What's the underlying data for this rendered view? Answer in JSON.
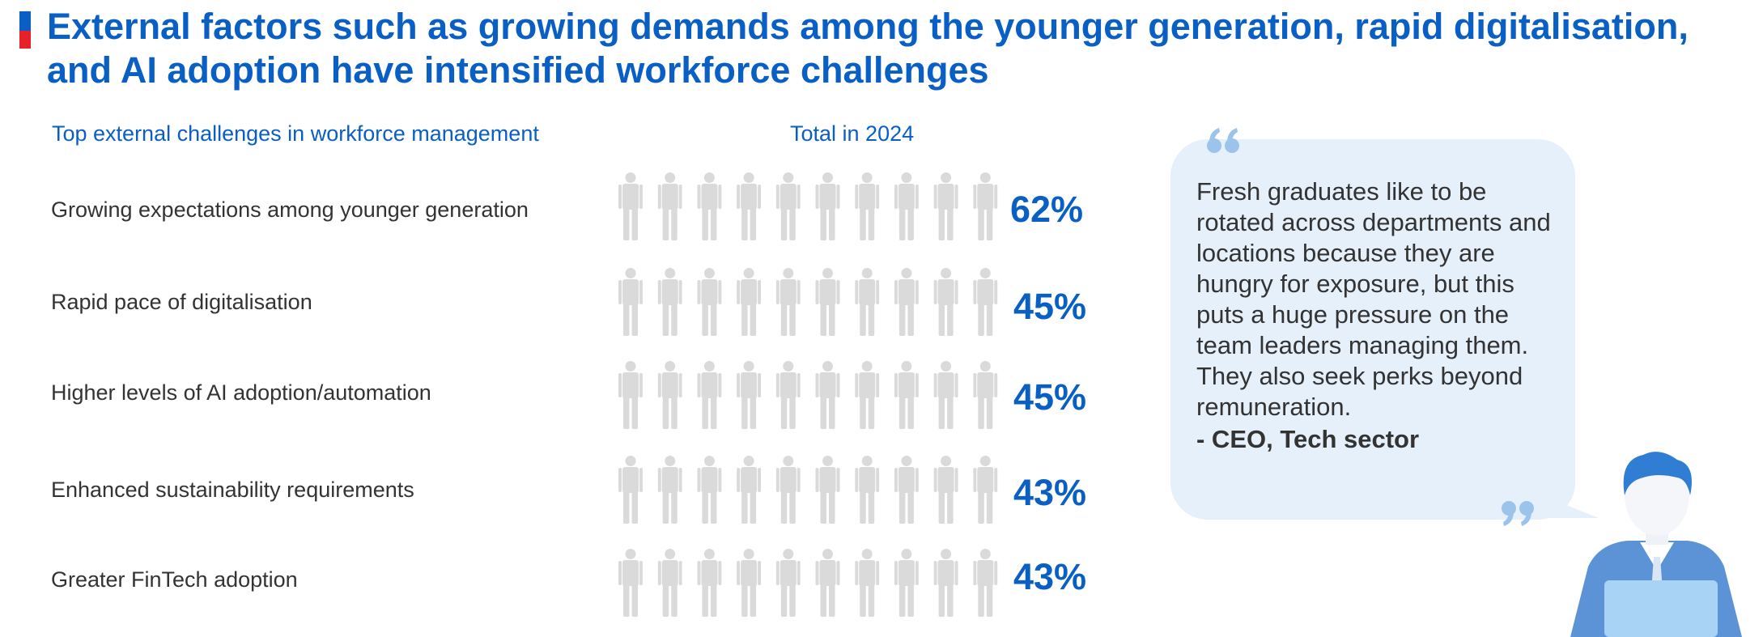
{
  "title": "External factors such as growing demands among the younger generation, rapid digitalisation, and AI adoption have intensified workforce challenges",
  "colors": {
    "accent": "#0a5fc4",
    "red": "#e8202a",
    "inactive": "#dadada",
    "bubble": "#e6f0fb"
  },
  "chart_data": {
    "type": "pictogram-bar",
    "title": "Top external challenges in workforce management",
    "value_header": "Total in 2024",
    "unit": "%",
    "icons_per_row": 10,
    "categories": [
      "Growing expectations among younger generation",
      "Rapid pace of digitalisation",
      "Higher levels of AI adoption/automation",
      "Enhanced sustainability requirements",
      "Greater FinTech adoption"
    ],
    "values": [
      62,
      45,
      45,
      43,
      43
    ],
    "value_labels": [
      "62%",
      "45%",
      "45%",
      "43%",
      "43%"
    ]
  },
  "quote": {
    "text": "Fresh graduates like to be rotated across departments and locations because they are hungry for exposure, but this puts a huge pressure on the team leaders managing them. They also seek perks beyond remuneration.",
    "attribution": "- CEO, Tech sector"
  }
}
